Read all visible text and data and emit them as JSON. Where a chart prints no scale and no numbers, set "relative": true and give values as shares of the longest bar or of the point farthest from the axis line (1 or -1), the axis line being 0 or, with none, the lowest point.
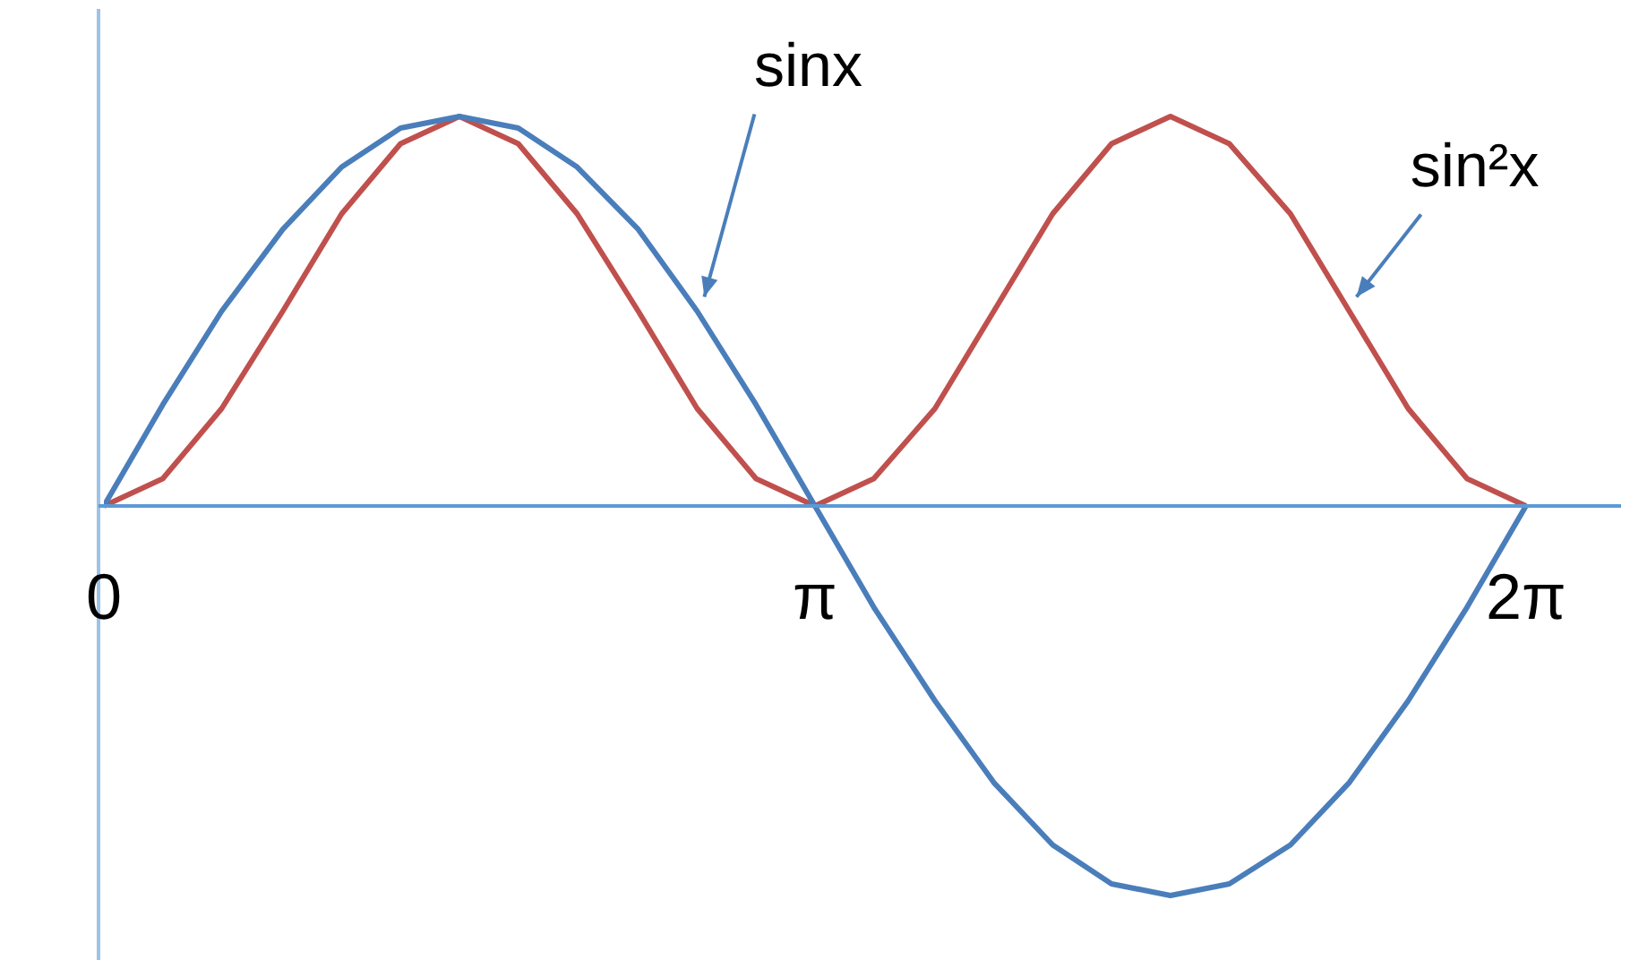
{
  "chart_data": {
    "type": "line",
    "relative": true,
    "x": [
      0,
      0.26,
      0.52,
      0.79,
      1.05,
      1.31,
      1.57,
      1.83,
      2.09,
      2.36,
      2.62,
      2.88,
      3.14,
      3.4,
      3.67,
      3.93,
      4.19,
      4.45,
      4.71,
      4.97,
      5.24,
      5.5,
      5.76,
      6.02,
      6.28
    ],
    "xlim": [
      0,
      6.7
    ],
    "xticks": [
      0,
      {
        "value": 3.14,
        "label": "π"
      },
      {
        "value": 6.28,
        "label": "2π"
      }
    ],
    "series": [
      {
        "name": "sinx",
        "color": "#4a7ebb",
        "values": [
          0,
          0.26,
          0.5,
          0.71,
          0.87,
          0.97,
          1,
          0.97,
          0.87,
          0.71,
          0.5,
          0.26,
          0,
          -0.26,
          -0.5,
          -0.71,
          -0.87,
          -0.97,
          -1,
          -0.97,
          -0.87,
          -0.71,
          -0.5,
          -0.26,
          0
        ]
      },
      {
        "name": "sin²x",
        "color": "#c0504d",
        "values": [
          0,
          0.07,
          0.25,
          0.5,
          0.75,
          0.93,
          1,
          0.93,
          0.75,
          0.5,
          0.25,
          0.07,
          0,
          0.07,
          0.25,
          0.5,
          0.75,
          0.93,
          1,
          0.93,
          0.75,
          0.5,
          0.25,
          0.07,
          0
        ]
      }
    ],
    "legend": false,
    "marker": "none",
    "line_style": "solid"
  }
}
